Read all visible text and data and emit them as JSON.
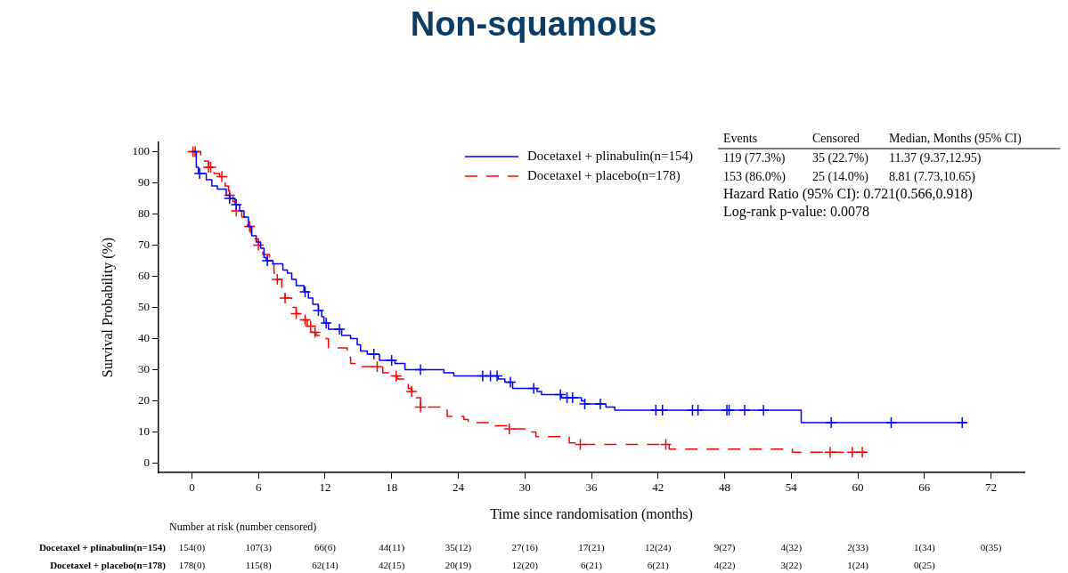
{
  "chart_data": {
    "type": "step",
    "title": "Non-squamous",
    "xlabel": "Time since randomisation (months)",
    "ylabel": "Survival Probability (%)",
    "xlim": [
      -3,
      75
    ],
    "xticks": [
      0,
      6,
      12,
      18,
      24,
      30,
      36,
      42,
      48,
      54,
      60,
      66,
      72
    ],
    "ylim": [
      -3,
      103
    ],
    "yticks": [
      0,
      10,
      20,
      30,
      40,
      50,
      60,
      70,
      80,
      90,
      100
    ],
    "legend": "top right",
    "series": [
      {
        "name": "Docetaxel + plinabulin(n=154)",
        "color": "#0000ff",
        "type": "step",
        "line_style": "solid",
        "x": [
          0,
          0.4,
          0.6,
          1.3,
          1.8,
          2.3,
          3.1,
          3.4,
          3.9,
          4.3,
          4.7,
          5.1,
          5.4,
          5.8,
          6.2,
          6.5,
          6.7,
          7.3,
          8.2,
          8.6,
          9.0,
          9.4,
          10.1,
          10.5,
          10.9,
          11.4,
          11.7,
          11.9,
          12.3,
          13.5,
          14.3,
          14.9,
          15.2,
          15.8,
          16.9,
          18.3,
          19.2,
          22.7,
          23.6,
          27.6,
          28.2,
          28.9,
          31.1,
          31.5,
          33.3,
          35.1,
          35.4,
          37.3,
          38.1,
          54.9,
          69.8
        ],
        "values": [
          100,
          95,
          93,
          91,
          89,
          88,
          86,
          85,
          83,
          81,
          79,
          76,
          73,
          71,
          69,
          66,
          65,
          64,
          62,
          61,
          59,
          57,
          55,
          53,
          51,
          49,
          47,
          45,
          43,
          41,
          40,
          38,
          36,
          35,
          33,
          32,
          30,
          29,
          28,
          27,
          26,
          24,
          23,
          22,
          21,
          20,
          19,
          18,
          17,
          13,
          13
        ]
      },
      {
        "name": "Docetaxel + placebo(n=178)",
        "color": "#ff0000",
        "type": "step",
        "line_style": "dashed",
        "x": [
          0,
          0.8,
          1.0,
          1.5,
          2.0,
          2.5,
          3.0,
          3.3,
          3.7,
          4.0,
          4.5,
          5.0,
          5.3,
          5.7,
          6.0,
          6.4,
          7.0,
          7.4,
          7.7,
          8.1,
          8.4,
          9.0,
          9.4,
          9.9,
          10.4,
          10.8,
          11.2,
          11.6,
          12.3,
          14.0,
          14.3,
          15.2,
          17.2,
          17.8,
          18.5,
          19.1,
          19.5,
          19.8,
          20.2,
          20.6,
          22.4,
          23.0,
          24.5,
          24.9,
          27.1,
          28.6,
          30.0,
          31.0,
          34.0,
          35.0,
          43.0,
          54.1,
          60.8
        ],
        "values": [
          100,
          99,
          97,
          95,
          93,
          92,
          89,
          86,
          84,
          81,
          79,
          76,
          74,
          72,
          70,
          67,
          64,
          61,
          59,
          56,
          53,
          50,
          48,
          46,
          44,
          42,
          41,
          40,
          37,
          34,
          32,
          31,
          29,
          28,
          27,
          26,
          24,
          23,
          21,
          18,
          17,
          15,
          14,
          13,
          12,
          11,
          10,
          8.5,
          6.5,
          6,
          4.5,
          3.5,
          3.5
        ]
      },
      {
        "color": "#0000ff",
        "type": "scatter",
        "marker": "cross",
        "x": [
          0.7,
          3.4,
          4.0,
          6.8,
          10.2,
          11.4,
          12.1,
          13.3,
          16.4,
          18.0,
          20.6,
          26.2,
          26.9,
          27.5,
          28.7,
          30.8,
          33.2,
          33.8,
          34.3,
          35.4,
          36.8,
          41.8,
          42.4,
          45.1,
          45.6,
          48.2,
          48.4,
          49.8,
          51.5,
          57.6,
          63.0,
          69.4
        ],
        "values": [
          93,
          85,
          83,
          65,
          55,
          49,
          45,
          43,
          35,
          33,
          30,
          28,
          28,
          28,
          26,
          24,
          22,
          21,
          21,
          19,
          19,
          17,
          17,
          17,
          17,
          17,
          17,
          17,
          17,
          13,
          13,
          13
        ]
      },
      {
        "color": "#ff0000",
        "type": "scatter",
        "marker": "cross",
        "x": [
          0.1,
          0.3,
          1.5,
          1.7,
          2.7,
          3.4,
          4.0,
          5.2,
          6.0,
          7.7,
          8.4,
          9.4,
          10.2,
          10.7,
          11.1,
          16.7,
          18.4,
          19.8,
          20.6,
          28.6,
          35.0,
          42.7,
          57.5,
          59.5,
          60.4
        ],
        "values": [
          100,
          100,
          95,
          95,
          92,
          86,
          81,
          76,
          70,
          59,
          53,
          48,
          46,
          44,
          42,
          31,
          28,
          23,
          18,
          11,
          6,
          6,
          3.5,
          3.5,
          3.5
        ]
      }
    ],
    "annotations": [
      "Events",
      "Censored",
      "Median, Months (95% CI)",
      "119 (77.3%)",
      "35 (22.7%)",
      "11.37 (9.37,12.95)",
      "153 (86.0%)",
      "25 (14.0%)",
      "8.81 (7.73,10.65)",
      "Hazard Ratio (95% CI): 0.721(0.566,0.918)",
      "Log-rank p-value: 0.0078",
      "Number at risk (number censored)",
      "Docetaxel + plinabulin(n=154)",
      "Docetaxel + placebo(n=178)",
      "154(0)",
      "107(3)",
      "66(6)",
      "44(11)",
      "35(12)",
      "27(16)",
      "17(21)",
      "12(24)",
      "9(27)",
      "4(32)",
      "2(33)",
      "1(34)",
      "0(35)",
      "178(0)",
      "115(8)",
      "62(14)",
      "42(15)",
      "20(19)",
      "12(20)",
      "6(21)",
      "6(21)",
      "4(22)",
      "3(22)",
      "1(24)",
      "0(25)"
    ]
  }
}
